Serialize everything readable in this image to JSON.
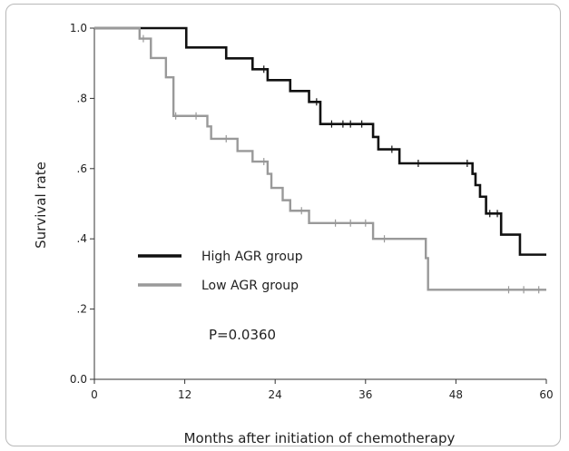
{
  "chart_data": {
    "type": "line",
    "subtype": "kaplan-meier step",
    "xlabel": "Months after initiation of chemotherapy",
    "ylabel": "Survival rate",
    "xlim": [
      0,
      60
    ],
    "ylim": [
      0,
      1.0
    ],
    "x_ticks": [
      {
        "value": 0,
        "label": "0"
      },
      {
        "value": 12,
        "label": "12"
      },
      {
        "value": 24,
        "label": "24"
      },
      {
        "value": 36,
        "label": "36"
      },
      {
        "value": 48,
        "label": "48"
      },
      {
        "value": 60,
        "label": "60"
      }
    ],
    "y_ticks": [
      {
        "value": 0.0,
        "label": "0.0"
      },
      {
        "value": 0.2,
        "label": ".2"
      },
      {
        "value": 0.4,
        "label": ".4"
      },
      {
        "value": 0.6,
        "label": ".6"
      },
      {
        "value": 0.8,
        "label": ".8"
      },
      {
        "value": 1.0,
        "label": "1.0"
      }
    ],
    "legend_position": "center-left",
    "annotation": "P=0.0360",
    "series": [
      {
        "name": "High AGR group",
        "color": "#111111",
        "steps": [
          [
            0,
            1.0
          ],
          [
            12.2,
            0.945
          ],
          [
            17.5,
            0.914
          ],
          [
            21,
            0.883
          ],
          [
            23,
            0.852
          ],
          [
            26,
            0.821
          ],
          [
            28.5,
            0.79
          ],
          [
            30,
            0.727
          ],
          [
            37,
            0.69
          ],
          [
            37.7,
            0.655
          ],
          [
            40.5,
            0.615
          ],
          [
            50.2,
            0.585
          ],
          [
            50.6,
            0.553
          ],
          [
            51.2,
            0.52
          ],
          [
            52,
            0.472
          ],
          [
            54,
            0.412
          ],
          [
            56.5,
            0.355
          ],
          [
            60,
            0.355
          ]
        ],
        "censored": [
          [
            22.5,
            0.883
          ],
          [
            29.5,
            0.79
          ],
          [
            31.5,
            0.727
          ],
          [
            33,
            0.727
          ],
          [
            34,
            0.727
          ],
          [
            35.5,
            0.727
          ],
          [
            39.5,
            0.655
          ],
          [
            43,
            0.615
          ],
          [
            49.5,
            0.615
          ],
          [
            52.5,
            0.472
          ],
          [
            53.5,
            0.472
          ]
        ]
      },
      {
        "name": "Low AGR group",
        "color": "#999999",
        "steps": [
          [
            0,
            1.0
          ],
          [
            6,
            0.97
          ],
          [
            7.5,
            0.915
          ],
          [
            9.5,
            0.86
          ],
          [
            10.5,
            0.75
          ],
          [
            15,
            0.72
          ],
          [
            15.5,
            0.685
          ],
          [
            19,
            0.65
          ],
          [
            21,
            0.62
          ],
          [
            23,
            0.585
          ],
          [
            23.5,
            0.545
          ],
          [
            25,
            0.51
          ],
          [
            26,
            0.48
          ],
          [
            28.5,
            0.445
          ],
          [
            37,
            0.4
          ],
          [
            44,
            0.345
          ],
          [
            44.3,
            0.255
          ],
          [
            60,
            0.255
          ]
        ],
        "censored": [
          [
            6.5,
            0.97
          ],
          [
            10.8,
            0.75
          ],
          [
            13.5,
            0.75
          ],
          [
            17.5,
            0.685
          ],
          [
            22.5,
            0.62
          ],
          [
            27.5,
            0.48
          ],
          [
            32,
            0.445
          ],
          [
            34,
            0.445
          ],
          [
            36,
            0.445
          ],
          [
            38.5,
            0.4
          ],
          [
            55,
            0.255
          ],
          [
            57,
            0.255
          ],
          [
            59,
            0.255
          ]
        ]
      }
    ]
  }
}
